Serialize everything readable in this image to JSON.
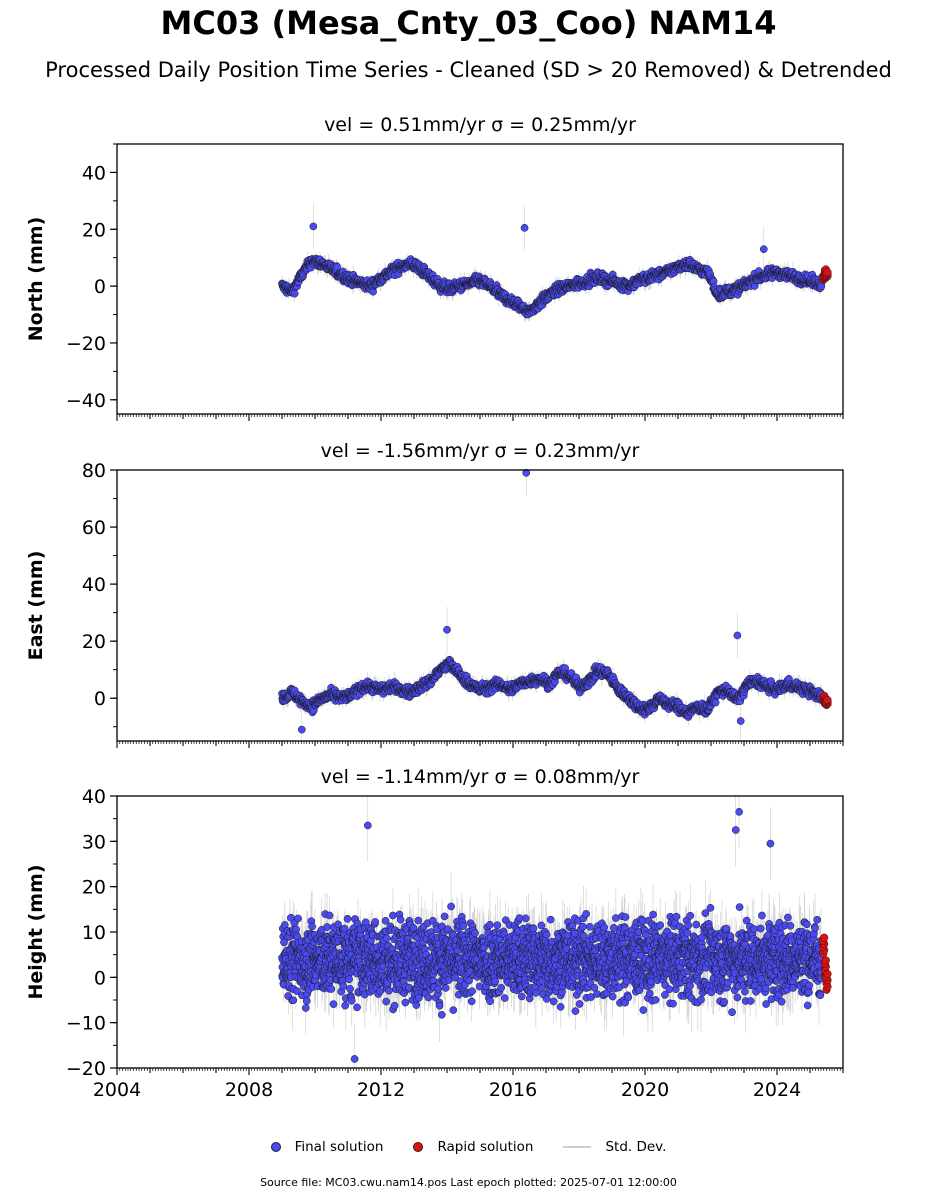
{
  "title": "MC03 (Mesa_Cnty_03_Coo) NAM14",
  "subtitle": "Processed Daily Position Time Series - Cleaned (SD > 20 Removed) & Detrended",
  "footer": "Source file: MC03.cwu.nam14.pos  Last epoch plotted: 2025-07-01 12:00:00",
  "colors": {
    "final": "#4a4af0",
    "rapid": "#e01010",
    "stddev": "#9a9a9a",
    "marker_edge": "#1a1a1a"
  },
  "legend": {
    "final": "Final solution",
    "rapid": "Rapid solution",
    "stddev": "Std. Dev."
  },
  "chart_data": [
    {
      "type": "scatter",
      "title": "vel = 0.51mm/yr   σ = 0.25mm/yr",
      "ylabel": "North (mm)",
      "xlim": [
        2004,
        2026
      ],
      "ylim": [
        -45,
        50
      ],
      "yticks": [
        -40,
        -20,
        0,
        20,
        40
      ],
      "xtick_labels_visible": false,
      "series": [
        {
          "name": "Final solution",
          "x": [
            2009.0,
            2009.3,
            2009.6,
            2009.9,
            2010.2,
            2010.5,
            2010.8,
            2011.1,
            2011.4,
            2011.7,
            2012.0,
            2012.3,
            2012.6,
            2012.9,
            2013.2,
            2013.5,
            2013.8,
            2014.1,
            2014.4,
            2014.7,
            2015.0,
            2015.3,
            2015.6,
            2015.9,
            2016.2,
            2016.5,
            2016.8,
            2017.1,
            2017.4,
            2017.7,
            2018.0,
            2018.3,
            2018.6,
            2018.9,
            2019.2,
            2019.5,
            2019.8,
            2020.1,
            2020.4,
            2020.7,
            2021.0,
            2021.3,
            2021.6,
            2021.9,
            2022.2,
            2022.5,
            2022.8,
            2023.1,
            2023.4,
            2023.7,
            2024.0,
            2024.3,
            2024.6,
            2024.9,
            2025.2
          ],
          "y": [
            0,
            -2,
            4,
            9,
            8,
            6,
            4,
            2,
            1,
            0,
            3,
            5,
            7,
            8,
            6,
            3,
            0,
            -1,
            0,
            1,
            2,
            0,
            -3,
            -5,
            -7,
            -9,
            -6,
            -3,
            -1,
            0,
            1,
            2,
            3,
            2,
            1,
            0,
            2,
            3,
            4,
            5,
            7,
            8,
            6,
            5,
            -3,
            -2,
            -1,
            1,
            3,
            4,
            5,
            4,
            3,
            2,
            1
          ],
          "outliers": [
            {
              "x": 2009.95,
              "y": 21
            },
            {
              "x": 2016.35,
              "y": 20.5
            },
            {
              "x": 2023.6,
              "y": 13
            }
          ]
        },
        {
          "name": "Rapid solution",
          "x": [
            2025.4,
            2025.45,
            2025.5
          ],
          "y": [
            3,
            5,
            4
          ]
        }
      ]
    },
    {
      "type": "scatter",
      "title": "vel = -1.56mm/yr   σ = 0.23mm/yr",
      "ylabel": "East (mm)",
      "xlim": [
        2004,
        2026
      ],
      "ylim": [
        -15,
        80
      ],
      "yticks": [
        0,
        20,
        40,
        60,
        80
      ],
      "xtick_labels_visible": false,
      "series": [
        {
          "name": "Final solution",
          "x": [
            2009.0,
            2009.3,
            2009.6,
            2009.9,
            2010.2,
            2010.5,
            2010.8,
            2011.1,
            2011.4,
            2011.7,
            2012.0,
            2012.3,
            2012.6,
            2012.9,
            2013.2,
            2013.5,
            2013.8,
            2014.1,
            2014.4,
            2014.7,
            2015.0,
            2015.3,
            2015.6,
            2015.9,
            2016.2,
            2016.5,
            2016.8,
            2017.1,
            2017.4,
            2017.7,
            2018.0,
            2018.3,
            2018.6,
            2018.9,
            2019.2,
            2019.5,
            2019.8,
            2020.1,
            2020.4,
            2020.7,
            2021.0,
            2021.3,
            2021.6,
            2021.9,
            2022.2,
            2022.5,
            2022.8,
            2023.1,
            2023.4,
            2023.7,
            2024.0,
            2024.3,
            2024.6,
            2024.9,
            2025.2
          ],
          "y": [
            0,
            2,
            -1,
            -3,
            0,
            1,
            0,
            1,
            4,
            4,
            3,
            4,
            3,
            2,
            4,
            6,
            10,
            12,
            8,
            5,
            3,
            4,
            5,
            3,
            5,
            6,
            7,
            5,
            9,
            8,
            4,
            6,
            10,
            8,
            3,
            0,
            -3,
            -4,
            0,
            -2,
            -3,
            -5,
            -3,
            -4,
            2,
            3,
            -1,
            5,
            6,
            4,
            3,
            5,
            4,
            3,
            1
          ],
          "outliers": [
            {
              "x": 2016.4,
              "y": 79
            },
            {
              "x": 2014.0,
              "y": 24
            },
            {
              "x": 2022.8,
              "y": 22
            },
            {
              "x": 2009.6,
              "y": -11
            },
            {
              "x": 2022.9,
              "y": -8
            }
          ]
        },
        {
          "name": "Rapid solution",
          "x": [
            2025.4,
            2025.45,
            2025.5
          ],
          "y": [
            0,
            -1,
            -1.5
          ]
        }
      ]
    },
    {
      "type": "scatter",
      "title": "vel = -1.14mm/yr   σ = 0.08mm/yr",
      "ylabel": "Height (mm)",
      "xlim": [
        2004,
        2026
      ],
      "ylim": [
        -20,
        40
      ],
      "yticks": [
        -20,
        -10,
        0,
        10,
        20,
        30,
        40
      ],
      "xticks": [
        2004,
        2008,
        2012,
        2016,
        2020,
        2024
      ],
      "xtick_labels_visible": true,
      "series": [
        {
          "name": "Final solution",
          "x_range": [
            2009.0,
            2025.35
          ],
          "center": 4,
          "spread": 7,
          "outliers": [
            {
              "x": 2011.6,
              "y": 33.5
            },
            {
              "x": 2022.85,
              "y": 36.5
            },
            {
              "x": 2022.75,
              "y": 32.5
            },
            {
              "x": 2023.8,
              "y": 29.5
            },
            {
              "x": 2011.2,
              "y": -18
            }
          ]
        },
        {
          "name": "Rapid solution",
          "x": [
            2025.4,
            2025.45,
            2025.5
          ],
          "y": [
            7,
            2,
            -1
          ]
        }
      ]
    }
  ]
}
